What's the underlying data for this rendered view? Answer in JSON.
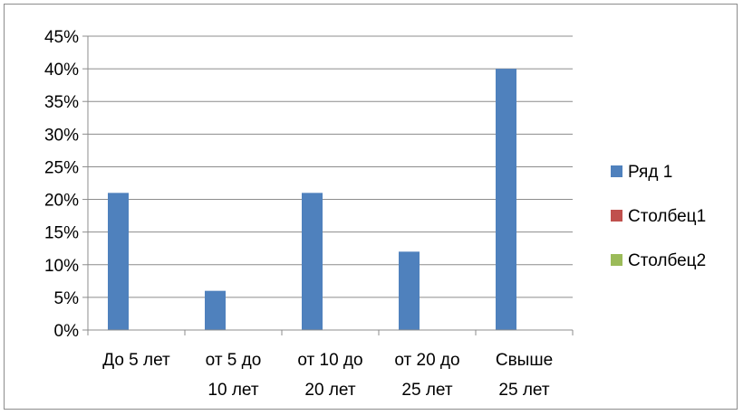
{
  "chart_data": {
    "type": "bar",
    "categories": [
      [
        "До 5 лет"
      ],
      [
        "от 5 до",
        "10 лет"
      ],
      [
        "от 10 до",
        "20 лет"
      ],
      [
        "от 20 до",
        "25 лет"
      ],
      [
        "Свыше",
        "25 лет"
      ]
    ],
    "series": [
      {
        "name": "Ряд 1",
        "color": "#4f81bd",
        "values": [
          21,
          6,
          21,
          12,
          40
        ]
      },
      {
        "name": "Столбец1",
        "color": "#c0504d",
        "values": [
          null,
          null,
          null,
          null,
          null
        ]
      },
      {
        "name": "Столбец2",
        "color": "#9bbb59",
        "values": [
          null,
          null,
          null,
          null,
          null
        ]
      }
    ],
    "title": "",
    "xlabel": "",
    "ylabel": "",
    "ylim": [
      0,
      45
    ],
    "yticks": [
      0,
      5,
      10,
      15,
      20,
      25,
      30,
      35,
      40,
      45
    ],
    "ytick_labels": [
      "0%",
      "5%",
      "10%",
      "15%",
      "20%",
      "25%",
      "30%",
      "35%",
      "40%",
      "45%"
    ],
    "grid": true,
    "legend_position": "right"
  }
}
